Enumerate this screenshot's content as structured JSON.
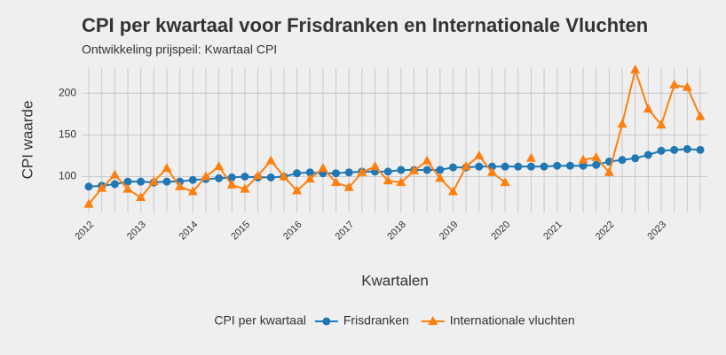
{
  "chart_data": {
    "type": "line",
    "title": "CPI per kwartaal voor Frisdranken en Internationale Vluchten",
    "subtitle": "Ontwikkeling prijspeil: Kwartaal CPI",
    "x_label": "Kwartalen",
    "y_label": "CPI waarde",
    "legend_title": "CPI per kwartaal",
    "legend_position": "bottom",
    "grid": true,
    "categories": [
      "2012",
      null,
      null,
      null,
      "2013",
      null,
      null,
      null,
      "2014",
      null,
      null,
      null,
      "2015",
      null,
      null,
      null,
      "2016",
      null,
      null,
      null,
      "2017",
      null,
      null,
      null,
      "2018",
      null,
      null,
      null,
      "2019",
      null,
      null,
      null,
      "2020",
      null,
      null,
      null,
      "2021",
      null,
      null,
      null,
      "2022",
      null,
      null,
      null,
      "2023",
      null,
      null,
      null
    ],
    "ylim": [
      57,
      230
    ],
    "yticks": [
      100,
      150,
      200
    ],
    "series": [
      {
        "name": "Frisdranken",
        "color": "#1f77b4",
        "marker": "circle",
        "values": [
          88,
          89,
          91,
          94,
          94,
          93,
          94,
          94,
          96,
          97,
          98,
          99,
          100,
          99,
          99,
          100,
          104,
          105,
          104,
          104,
          105,
          106,
          106,
          106,
          108,
          108,
          108,
          108,
          111,
          111,
          112,
          112,
          112,
          112,
          112,
          112,
          113,
          113,
          113,
          114,
          118,
          120,
          122,
          126,
          131,
          132,
          133,
          132
        ]
      },
      {
        "name": "Internationale vluchten",
        "color": "#ff7f0e",
        "marker": "triangle",
        "values": [
          67,
          86,
          102,
          85,
          75,
          94,
          110,
          88,
          82,
          100,
          112,
          90,
          85,
          101,
          119,
          100,
          83,
          97,
          110,
          93,
          87,
          105,
          112,
          95,
          93,
          107,
          119,
          98,
          82,
          112,
          125,
          105,
          93,
          null,
          122,
          null,
          null,
          null,
          120,
          123,
          105,
          163,
          228,
          181,
          162,
          210,
          207,
          172
        ]
      }
    ]
  }
}
